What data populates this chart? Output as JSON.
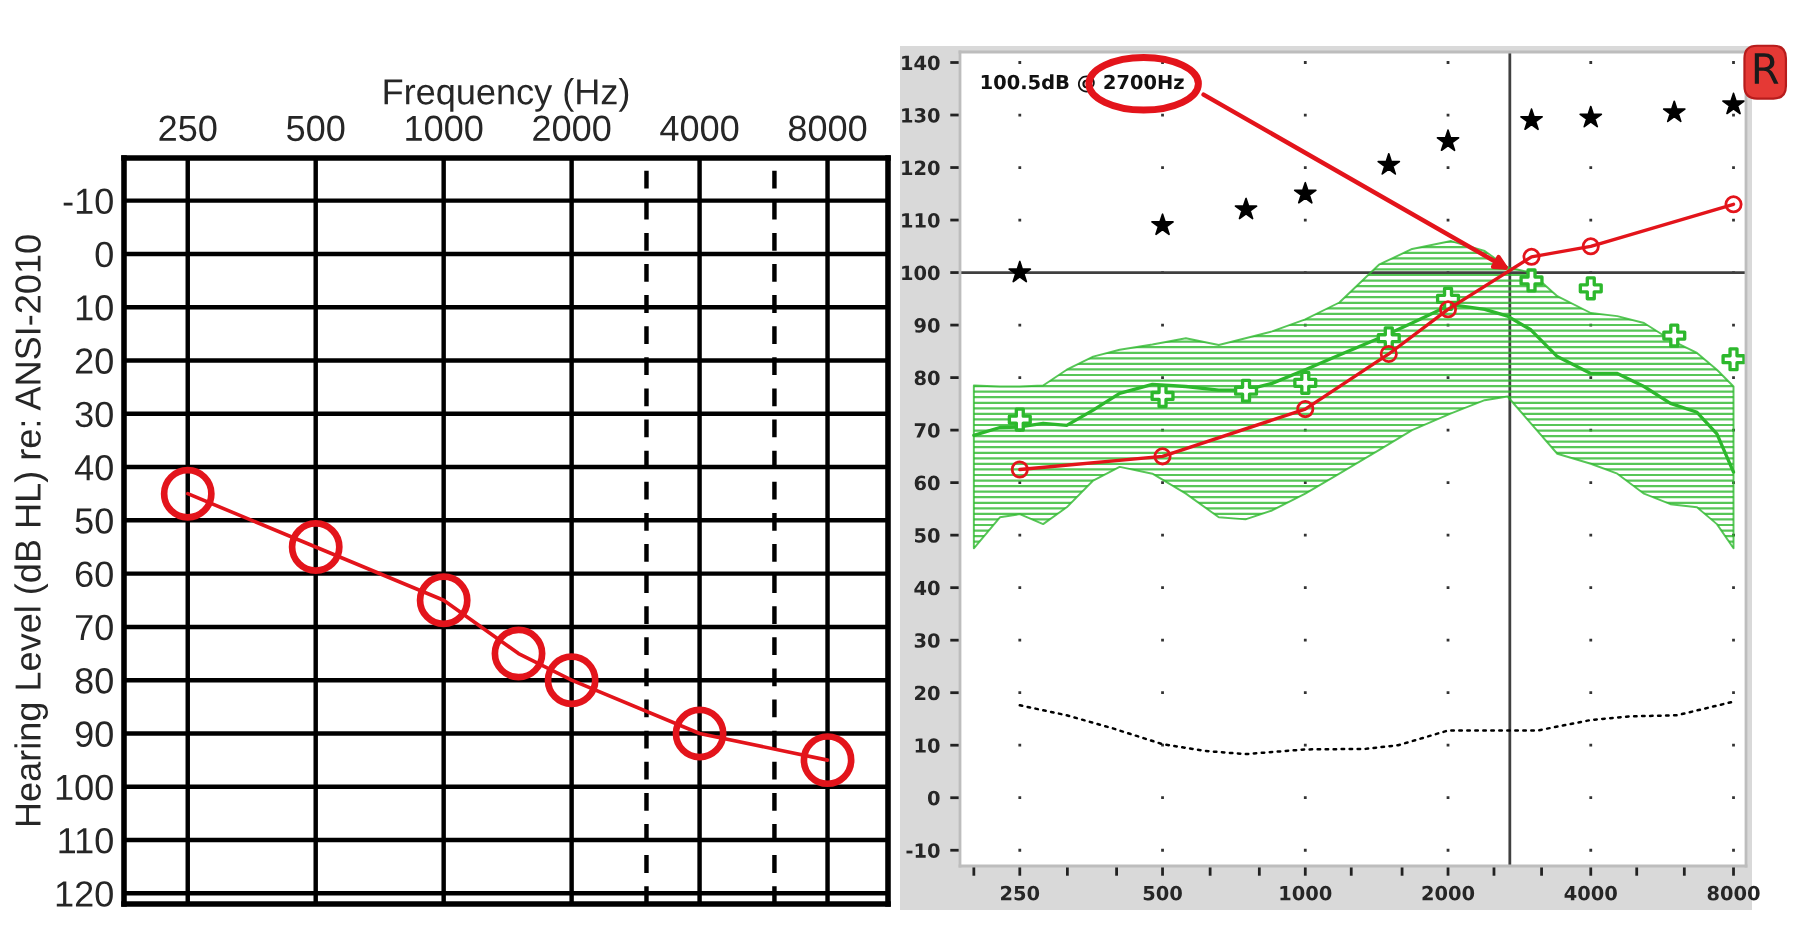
{
  "chart_data": [
    {
      "type": "line",
      "xlabel": "Frequency (Hz)",
      "ylabel": "Hearing Level (dB HL) re: ANSI-2010",
      "log": "x",
      "marker": "circle",
      "grid": true,
      "x": [
        250,
        500,
        1000,
        1500,
        2000,
        4000,
        8000
      ],
      "series": [
        {
          "color": "#e3141b",
          "values": [
            45,
            55,
            65,
            75,
            80,
            90,
            95
          ]
        }
      ],
      "xlim": [
        177,
        11100
      ],
      "xticks": [
        250,
        500,
        1000,
        2000,
        4000,
        8000
      ],
      "ylim": [
        122,
        -18
      ],
      "yticks": [
        -10,
        0,
        10,
        20,
        30,
        40,
        50,
        60,
        70,
        80,
        90,
        100,
        110,
        120
      ],
      "ref_lines": [
        {
          "axis": "x",
          "value": 3000,
          "line_style": "dashed",
          "color": "#000000"
        },
        {
          "axis": "x",
          "value": 6000,
          "line_style": "dashed",
          "color": "#000000"
        }
      ]
    },
    {
      "type": "line",
      "log": "x",
      "grid": true,
      "series": [
        {
          "type": "line",
          "color": "#2db82d",
          "marker": "none",
          "x": [
            200,
            227,
            250,
            280,
            314,
            357,
            406,
            476,
            560,
            657,
            748,
            851,
            1000,
            1180,
            1430,
            1680,
            2030,
            2390,
            2670,
            2990,
            3400,
            4000,
            4550,
            5180,
            5890,
            6700,
            7380,
            8000
          ],
          "values": [
            69,
            70.5,
            70.6,
            71.3,
            70.9,
            73.8,
            77,
            78.7,
            78.3,
            77.6,
            77.6,
            78.9,
            81.5,
            84.3,
            87.5,
            90.4,
            93.9,
            93,
            91.7,
            89.1,
            84,
            80.8,
            80.8,
            78.3,
            75.1,
            73.4,
            69.3,
            62
          ],
          "lower": [
            47.5,
            53.4,
            54,
            52.1,
            55.3,
            60.4,
            63,
            61.7,
            57.9,
            53.4,
            53,
            54.7,
            57.9,
            61.7,
            66.2,
            70,
            73.2,
            75.7,
            76.4,
            71.3,
            65.5,
            63.6,
            61.7,
            57.9,
            55.9,
            55.3,
            52.1,
            47.5
          ],
          "upper": [
            78.5,
            78.3,
            78.3,
            78.5,
            81.5,
            84,
            85.3,
            86.3,
            87.5,
            86.2,
            87.5,
            88.8,
            91.1,
            94.3,
            101.5,
            104.5,
            106,
            104.1,
            101,
            100,
            95.5,
            92.3,
            91.7,
            90.4,
            87.2,
            84.7,
            81.5,
            78.3
          ]
        },
        {
          "type": "scatter",
          "marker": "cross",
          "color": "#2db82d",
          "x": [
            250,
            500,
            750,
            1000,
            1500,
            2000,
            3000,
            4000,
            6000,
            8000
          ],
          "values": [
            72,
            76.5,
            77.5,
            79,
            87.5,
            95,
            98.5,
            97,
            88,
            83.5
          ]
        },
        {
          "type": "line",
          "marker": "circle",
          "color": "#e3141b",
          "x": [
            250,
            500,
            1000,
            1500,
            2000,
            3000,
            4000,
            8000
          ],
          "values": [
            62.5,
            65,
            74,
            84.5,
            93,
            103,
            105,
            113
          ]
        },
        {
          "type": "scatter",
          "marker": "star",
          "color": "#000000",
          "x": [
            250,
            500,
            750,
            1000,
            1500,
            2000,
            3000,
            4000,
            6000,
            8000
          ],
          "values": [
            100,
            109,
            112,
            115,
            120.5,
            125,
            129,
            129.5,
            130.5,
            132
          ]
        },
        {
          "type": "line",
          "line_style": "dotted",
          "marker": "none",
          "color": "#000000",
          "x": [
            250,
            314,
            393,
            500,
            617,
            748,
            1000,
            1340,
            1570,
            2000,
            2670,
            3090,
            4000,
            4860,
            6080,
            8000
          ],
          "values": [
            17.6,
            15.7,
            13.2,
            10.2,
            8.9,
            8.3,
            9.2,
            9.3,
            10,
            12.8,
            12.8,
            12.8,
            14.8,
            15.5,
            15.7,
            18.3
          ]
        }
      ],
      "xlim": [
        187,
        8500
      ],
      "xticks": [
        {
          "value": 200,
          "label": null
        },
        250,
        {
          "value": 315,
          "label": null
        },
        {
          "value": 400,
          "label": null
        },
        500,
        {
          "value": 630,
          "label": null
        },
        {
          "value": 800,
          "label": null
        },
        1000,
        {
          "value": 1250,
          "label": null
        },
        {
          "value": 1600,
          "label": null
        },
        2000,
        {
          "value": 2500,
          "label": null
        },
        {
          "value": 3150,
          "label": null
        },
        4000,
        {
          "value": 5000,
          "label": null
        },
        {
          "value": 6300,
          "label": null
        },
        8000
      ],
      "ylim": [
        -13,
        142
      ],
      "yticks": [
        -10,
        0,
        10,
        20,
        30,
        40,
        50,
        60,
        70,
        80,
        90,
        100,
        110,
        120,
        130,
        140
      ],
      "ref_lines": [
        {
          "axis": "x",
          "value": 2700,
          "color": "#404040"
        },
        {
          "axis": "y",
          "value": 100,
          "color": "#404040"
        }
      ],
      "annotations": [
        {
          "text": "100.5dB @ 2700Hz",
          "x": 2700,
          "y": 100.5
        },
        "R"
      ]
    }
  ]
}
